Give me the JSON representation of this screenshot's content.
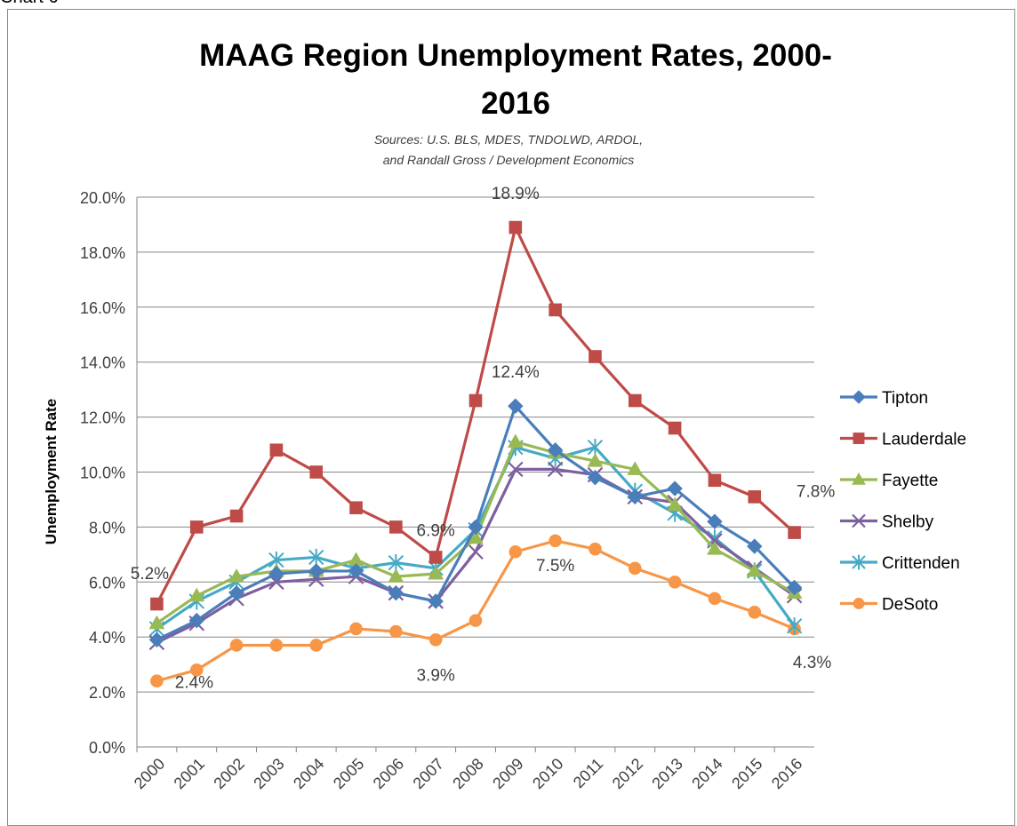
{
  "frame_label": "Chart 6",
  "chart_data": {
    "type": "line",
    "title_line1": "MAAG Region Unemployment Rates, 2000-",
    "title_line2": "2016",
    "subtitle_line1": "Sources: U.S. BLS, MDES, TNDOLWD, ARDOL,",
    "subtitle_line2": "and Randall Gross / Development Economics",
    "ylabel": "Unemployment Rate",
    "xlabel": "",
    "ylim": [
      0,
      20
    ],
    "yticks": [
      {
        "value": 0,
        "label": "0.0%"
      },
      {
        "value": 2,
        "label": "2.0%"
      },
      {
        "value": 4,
        "label": "4.0%"
      },
      {
        "value": 6,
        "label": "6.0%"
      },
      {
        "value": 8,
        "label": "8.0%"
      },
      {
        "value": 10,
        "label": "10.0%"
      },
      {
        "value": 12,
        "label": "12.0%"
      },
      {
        "value": 14,
        "label": "14.0%"
      },
      {
        "value": 16,
        "label": "16.0%"
      },
      {
        "value": 18,
        "label": "18.0%"
      },
      {
        "value": 20,
        "label": "20.0%"
      }
    ],
    "categories": [
      "2000",
      "2001",
      "2002",
      "2003",
      "2004",
      "2005",
      "2006",
      "2007",
      "2008",
      "2009",
      "2010",
      "2011",
      "2012",
      "2013",
      "2014",
      "2015",
      "2016"
    ],
    "grid": true,
    "legend_position": "right",
    "series": [
      {
        "name": "Tipton",
        "color": "#4a7ebb",
        "marker": "diamond",
        "values": [
          3.9,
          4.6,
          5.6,
          6.3,
          6.4,
          6.4,
          5.6,
          5.3,
          8.0,
          12.4,
          10.8,
          9.8,
          9.1,
          9.4,
          8.2,
          7.3,
          5.8
        ]
      },
      {
        "name": "Lauderdale",
        "color": "#be4b48",
        "marker": "square",
        "values": [
          5.2,
          8.0,
          8.4,
          10.8,
          10.0,
          8.7,
          8.0,
          6.9,
          12.6,
          18.9,
          15.9,
          14.2,
          12.6,
          11.6,
          9.7,
          9.1,
          7.8
        ]
      },
      {
        "name": "Fayette",
        "color": "#98b954",
        "marker": "triangle",
        "values": [
          4.5,
          5.5,
          6.2,
          6.4,
          6.4,
          6.8,
          6.2,
          6.3,
          7.6,
          11.1,
          10.7,
          10.4,
          10.1,
          8.8,
          7.2,
          6.4,
          5.6
        ]
      },
      {
        "name": "Shelby",
        "color": "#7d60a0",
        "marker": "x",
        "values": [
          3.8,
          4.5,
          5.4,
          6.0,
          6.1,
          6.2,
          5.6,
          5.3,
          7.1,
          10.1,
          10.1,
          9.9,
          9.1,
          8.9,
          7.5,
          6.5,
          5.5
        ]
      },
      {
        "name": "Crittenden",
        "color": "#46aac5",
        "marker": "star",
        "values": [
          4.3,
          5.3,
          6.0,
          6.8,
          6.9,
          6.5,
          6.7,
          6.5,
          7.9,
          10.9,
          10.5,
          10.9,
          9.3,
          8.5,
          7.6,
          6.4,
          4.4
        ]
      },
      {
        "name": "DeSoto",
        "color": "#f79646",
        "marker": "circle",
        "values": [
          2.4,
          2.8,
          3.7,
          3.7,
          3.7,
          4.3,
          4.2,
          3.9,
          4.6,
          7.1,
          7.5,
          7.2,
          6.5,
          6.0,
          5.4,
          4.9,
          4.3
        ]
      }
    ],
    "annotations": [
      {
        "text": "5.2%",
        "series": "Lauderdale",
        "category": "2000"
      },
      {
        "text": "2.4%",
        "series": "DeSoto",
        "category": "2000"
      },
      {
        "text": "6.9%",
        "series": "Lauderdale",
        "category": "2007"
      },
      {
        "text": "3.9%",
        "series": "DeSoto",
        "category": "2007"
      },
      {
        "text": "18.9%",
        "series": "Lauderdale",
        "category": "2009"
      },
      {
        "text": "12.4%",
        "series": "Tipton",
        "category": "2009"
      },
      {
        "text": "7.5%",
        "series": "DeSoto",
        "category": "2010"
      },
      {
        "text": "7.8%",
        "series": "Lauderdale",
        "category": "2016"
      },
      {
        "text": "4.3%",
        "series": "DeSoto",
        "category": "2016"
      }
    ]
  }
}
